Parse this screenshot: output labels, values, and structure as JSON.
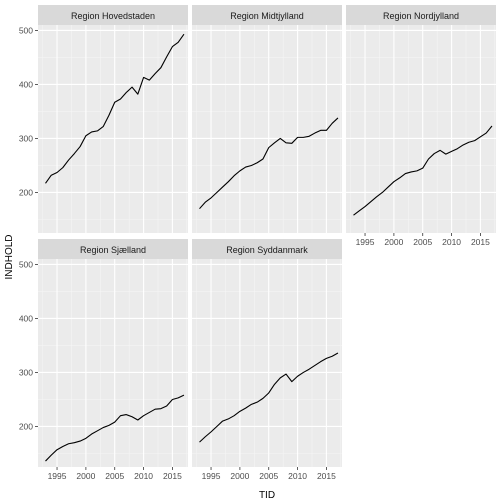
{
  "chart_data": {
    "type": "line",
    "xlabel": "TID",
    "ylabel": "INDHOLD",
    "xlim": [
      1991.7,
      2017.7
    ],
    "ylim": [
      125,
      510
    ],
    "x_ticks": [
      1995,
      2000,
      2005,
      2010,
      2015
    ],
    "y_ticks": [
      200,
      300,
      400,
      500
    ],
    "grid": true,
    "layout": {
      "columns": 3,
      "rows": 2
    },
    "facets": [
      {
        "name": "Region Hovedstaden",
        "x": [
          1993,
          1994,
          1995,
          1996,
          1997,
          1998,
          1999,
          2000,
          2001,
          2002,
          2003,
          2004,
          2005,
          2006,
          2007,
          2008,
          2009,
          2010,
          2011,
          2012,
          2013,
          2014,
          2015,
          2016,
          2017
        ],
        "values": [
          217,
          232,
          237,
          246,
          260,
          272,
          285,
          305,
          312,
          314,
          322,
          343,
          367,
          373,
          385,
          395,
          382,
          413,
          408,
          420,
          431,
          451,
          470,
          478,
          493
        ]
      },
      {
        "name": "Region Midtjylland",
        "x": [
          1993,
          1994,
          1995,
          1996,
          1997,
          1998,
          1999,
          2000,
          2001,
          2002,
          2003,
          2004,
          2005,
          2006,
          2007,
          2008,
          2009,
          2010,
          2011,
          2012,
          2013,
          2014,
          2015,
          2016,
          2017
        ],
        "values": [
          170,
          182,
          190,
          200,
          210,
          220,
          231,
          240,
          247,
          250,
          255,
          262,
          283,
          292,
          300,
          292,
          291,
          302,
          302,
          304,
          310,
          315,
          315,
          328,
          338
        ]
      },
      {
        "name": "Region Nordjylland",
        "x": [
          1993,
          1994,
          1995,
          1996,
          1997,
          1998,
          1999,
          2000,
          2001,
          2002,
          2003,
          2004,
          2005,
          2006,
          2007,
          2008,
          2009,
          2010,
          2011,
          2012,
          2013,
          2014,
          2015,
          2016,
          2017
        ],
        "values": [
          158,
          166,
          174,
          183,
          192,
          200,
          210,
          220,
          227,
          235,
          238,
          240,
          245,
          262,
          272,
          278,
          271,
          276,
          281,
          288,
          293,
          296,
          303,
          310,
          323
        ]
      },
      {
        "name": "Region Sjælland",
        "x": [
          1993,
          1994,
          1995,
          1996,
          1997,
          1998,
          1999,
          2000,
          2001,
          2002,
          2003,
          2004,
          2005,
          2006,
          2007,
          2008,
          2009,
          2010,
          2011,
          2012,
          2013,
          2014,
          2015,
          2016,
          2017
        ],
        "values": [
          136,
          147,
          157,
          163,
          168,
          170,
          173,
          178,
          186,
          192,
          198,
          202,
          208,
          220,
          222,
          218,
          212,
          220,
          226,
          232,
          233,
          238,
          250,
          253,
          258
        ]
      },
      {
        "name": "Region Syddanmark",
        "x": [
          1993,
          1994,
          1995,
          1996,
          1997,
          1998,
          1999,
          2000,
          2001,
          2002,
          2003,
          2004,
          2005,
          2006,
          2007,
          2008,
          2009,
          2010,
          2011,
          2012,
          2013,
          2014,
          2015,
          2016,
          2017
        ],
        "values": [
          171,
          181,
          190,
          200,
          210,
          214,
          220,
          228,
          234,
          241,
          245,
          252,
          262,
          278,
          290,
          297,
          283,
          293,
          300,
          306,
          313,
          320,
          326,
          330,
          336
        ]
      }
    ]
  }
}
